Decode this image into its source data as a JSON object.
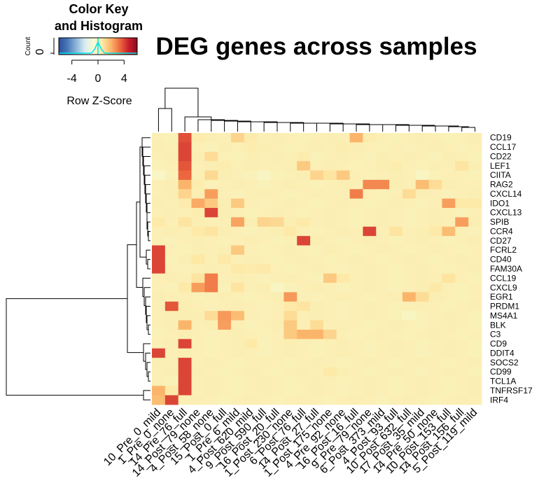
{
  "chart_data": {
    "type": "heatmap",
    "title": "DEG genes across samples",
    "rows": [
      "CD19",
      "CCL17",
      "CD22",
      "LEF1",
      "CIITA",
      "RAG2",
      "CXCL14",
      "IDO1",
      "CXCL13",
      "SPIB",
      "CCR4",
      "CD27",
      "FCRL2",
      "CD40",
      "FAM30A",
      "CCL19",
      "CXCL9",
      "EGR1",
      "PRDM1",
      "MS4A1",
      "BLK",
      "C3",
      "CD9",
      "DDIT4",
      "SOCS2",
      "CD99",
      "TCL1A",
      "TNFRSF17",
      "IRF4"
    ],
    "columns": [
      "10_Pre_0_mild",
      "1_Pre_0_none",
      "14_Pre_76_full",
      "14_Post_79_none",
      "4_Post_58_none",
      "15_Post_0_full",
      "1_Pre_6_mild",
      "4_Post_620_mild",
      "9_Post_590_full",
      "16_Post_20_full",
      "1_Post_230_none",
      "6_Post_76_full",
      "14_Post_27_full",
      "1_Post_175_none",
      "4_Pre_92_none",
      "16_Post_16_full",
      "9_Pre_79_none",
      "6_Post_373_mild",
      "4_Post_93_full",
      "10_Post_632_full",
      "17_Post_35_mild",
      "14_Pre_50_none",
      "10_Post_153_full",
      "14_Post_156_full",
      "5_Post_119_mild"
    ],
    "values": [
      [
        0.2,
        0.1,
        3.8,
        0.4,
        0.3,
        0.2,
        1.2,
        0.5,
        0.2,
        0.3,
        0.2,
        0.1,
        0.2,
        0.3,
        0.2,
        2.0,
        0.4,
        0.2,
        0.1,
        0.2,
        0.3,
        0.2,
        0.1,
        0.2,
        0.3
      ],
      [
        0.3,
        0.2,
        4.0,
        0.2,
        0.1,
        0.3,
        0.2,
        0.4,
        0.3,
        0.2,
        0.1,
        0.2,
        0.3,
        0.2,
        0.4,
        0.3,
        0.2,
        0.1,
        0.2,
        0.1,
        0.2,
        0.3,
        0.2,
        0.1,
        0.2
      ],
      [
        0.2,
        0.3,
        4.0,
        0.3,
        1.0,
        0.2,
        0.1,
        0.3,
        0.2,
        0.3,
        0.2,
        0.4,
        0.1,
        0.2,
        0.3,
        0.2,
        0.1,
        0.3,
        0.2,
        0.3,
        0.2,
        0.1,
        0.3,
        0.2,
        0.1
      ],
      [
        0.1,
        0.2,
        3.7,
        0.2,
        0.3,
        0.4,
        0.2,
        0.3,
        0.2,
        0.2,
        0.3,
        1.5,
        0.2,
        0.3,
        0.2,
        0.1,
        0.2,
        0.3,
        0.4,
        0.2,
        0.1,
        0.3,
        0.2,
        0.8,
        0.3
      ],
      [
        -0.3,
        0.1,
        3.4,
        0.2,
        1.1,
        0.3,
        0.2,
        0.1,
        -0.2,
        0.1,
        0.2,
        0.3,
        1.2,
        0.8,
        1.5,
        0.2,
        0.1,
        0.2,
        0.3,
        0.2,
        -0.2,
        0.1,
        0.2,
        0.2,
        0.1
      ],
      [
        0.2,
        0.3,
        2.0,
        0.4,
        0.1,
        0.2,
        0.3,
        0.2,
        0.1,
        0.2,
        0.3,
        0.2,
        0.1,
        0.2,
        0.3,
        0.2,
        2.8,
        2.8,
        0.3,
        0.2,
        1.8,
        1.0,
        0.3,
        0.2,
        0.2
      ],
      [
        0.2,
        0.3,
        1.2,
        0.3,
        2.4,
        0.2,
        0.1,
        0.2,
        0.3,
        0.2,
        0.1,
        0.2,
        0.3,
        0.2,
        0.2,
        3.0,
        0.2,
        0.1,
        0.2,
        1.0,
        0.3,
        0.2,
        0.1,
        0.2,
        0.3
      ],
      [
        0.3,
        0.2,
        0.5,
        2.2,
        1.5,
        0.3,
        1.5,
        0.2,
        0.1,
        0.2,
        0.3,
        0.2,
        0.1,
        0.2,
        0.3,
        0.2,
        0.1,
        0.2,
        0.3,
        0.2,
        0.1,
        0.2,
        2.4,
        0.6,
        0.6
      ],
      [
        0.2,
        0.3,
        0.2,
        0.4,
        4.0,
        0.3,
        0.2,
        0.1,
        0.2,
        0.3,
        0.2,
        0.1,
        0.2,
        0.3,
        0.2,
        0.1,
        0.2,
        0.3,
        0.2,
        0.1,
        0.2,
        0.3,
        0.2,
        0.1,
        0.2
      ],
      [
        0.6,
        0.2,
        0.8,
        0.3,
        0.2,
        0.2,
        2.3,
        0.3,
        1.2,
        1.1,
        0.3,
        0.6,
        0.2,
        0.3,
        0.2,
        0.1,
        0.2,
        0.3,
        0.2,
        0.1,
        0.2,
        0.3,
        0.2,
        2.4,
        0.3
      ],
      [
        0.2,
        0.3,
        0.2,
        0.6,
        0.8,
        0.3,
        0.2,
        0.1,
        0.2,
        0.3,
        0.6,
        0.2,
        0.1,
        0.2,
        0.3,
        0.2,
        4.0,
        0.2,
        0.8,
        0.2,
        0.3,
        0.6,
        1.8,
        0.2,
        0.1
      ],
      [
        0.2,
        0.1,
        0.2,
        0.3,
        0.2,
        0.1,
        0.2,
        0.3,
        0.2,
        0.1,
        0.2,
        4.0,
        0.3,
        0.2,
        0.1,
        0.2,
        0.3,
        0.2,
        0.1,
        0.2,
        0.3,
        0.2,
        0.1,
        0.2,
        0.3
      ],
      [
        4.0,
        0.2,
        0.1,
        0.3,
        0.2,
        0.3,
        1.5,
        0.2,
        0.1,
        0.2,
        0.3,
        0.2,
        0.1,
        0.3,
        0.2,
        0.1,
        0.2,
        0.3,
        0.2,
        0.1,
        0.2,
        0.3,
        0.2,
        0.1,
        0.2
      ],
      [
        4.0,
        0.1,
        0.3,
        0.7,
        0.2,
        0.6,
        0.2,
        0.3,
        0.2,
        0.1,
        0.2,
        0.3,
        0.2,
        0.1,
        0.2,
        0.3,
        0.2,
        0.1,
        0.2,
        0.3,
        0.2,
        0.1,
        0.2,
        0.3,
        0.2
      ],
      [
        4.0,
        0.2,
        0.1,
        0.2,
        0.3,
        0.2,
        0.6,
        0.5,
        0.6,
        0.2,
        0.1,
        0.2,
        0.3,
        0.2,
        0.1,
        0.2,
        0.3,
        0.2,
        0.1,
        0.2,
        0.3,
        0.2,
        0.1,
        0.2,
        0.3
      ],
      [
        0.2,
        0.3,
        0.2,
        0.8,
        3.0,
        0.2,
        0.3,
        0.2,
        0.1,
        0.2,
        0.3,
        0.2,
        0.1,
        1.5,
        0.6,
        0.2,
        0.3,
        0.2,
        0.1,
        0.2,
        0.3,
        0.2,
        0.8,
        0.2,
        0.1
      ],
      [
        0.2,
        0.1,
        0.6,
        2.4,
        3.0,
        0.1,
        0.8,
        0.2,
        0.3,
        -0.2,
        0.1,
        0.2,
        0.3,
        0.2,
        0.1,
        0.2,
        0.3,
        0.2,
        0.1,
        0.2,
        0.3,
        0.6,
        0.2,
        0.1,
        0.2
      ],
      [
        0.3,
        0.2,
        0.2,
        0.1,
        0.2,
        0.3,
        0.2,
        0.1,
        0.2,
        0.3,
        2.5,
        0.2,
        0.1,
        0.2,
        0.3,
        0.2,
        0.1,
        0.2,
        0.3,
        2.0,
        1.0,
        0.3,
        0.2,
        0.1,
        0.2
      ],
      [
        0.2,
        3.7,
        0.3,
        0.2,
        0.1,
        0.2,
        0.3,
        0.2,
        0.1,
        0.2,
        0.6,
        0.8,
        0.3,
        0.2,
        0.1,
        0.2,
        0.3,
        0.2,
        0.1,
        0.2,
        0.3,
        0.2,
        0.1,
        0.2,
        0.3
      ],
      [
        0.2,
        0.3,
        0.3,
        0.3,
        1.0,
        2.5,
        1.8,
        0.2,
        0.1,
        0.2,
        1.0,
        0.2,
        0.3,
        0.2,
        0.1,
        0.2,
        0.3,
        0.2,
        0.1,
        -0.2,
        0.1,
        0.2,
        0.3,
        0.2,
        0.1
      ],
      [
        0.2,
        0.3,
        2.0,
        0.2,
        0.3,
        2.4,
        0.2,
        0.1,
        0.2,
        0.3,
        1.5,
        0.2,
        1.0,
        0.2,
        0.3,
        0.2,
        0.1,
        0.2,
        0.3,
        0.2,
        0.1,
        0.2,
        0.3,
        0.2,
        0.1
      ],
      [
        0.1,
        0.2,
        0.3,
        0.2,
        0.1,
        0.2,
        0.3,
        0.2,
        0.1,
        0.2,
        1.5,
        2.0,
        2.0,
        1.2,
        0.2,
        0.1,
        0.2,
        0.3,
        0.2,
        0.1,
        0.2,
        0.3,
        0.2,
        0.1,
        0.2
      ],
      [
        0.2,
        0.3,
        4.0,
        0.2,
        0.1,
        0.2,
        0.3,
        0.6,
        0.1,
        0.2,
        0.3,
        0.2,
        0.1,
        0.2,
        0.3,
        0.2,
        0.1,
        0.2,
        0.3,
        0.2,
        0.1,
        0.2,
        0.3,
        0.2,
        0.1
      ],
      [
        4.0,
        0.2,
        0.3,
        0.2,
        0.1,
        0.2,
        0.3,
        0.2,
        0.1,
        0.2,
        0.3,
        0.2,
        0.1,
        0.2,
        0.3,
        0.2,
        0.1,
        0.2,
        0.3,
        0.2,
        0.1,
        0.2,
        0.3,
        0.2,
        0.1
      ],
      [
        0.3,
        0.2,
        4.0,
        0.2,
        0.3,
        0.2,
        0.1,
        0.2,
        0.3,
        0.2,
        0.1,
        0.2,
        0.3,
        0.2,
        0.1,
        0.2,
        0.3,
        0.2,
        0.1,
        0.2,
        0.3,
        0.2,
        0.1,
        0.2,
        0.3
      ],
      [
        0.2,
        0.3,
        4.0,
        0.3,
        0.2,
        0.1,
        0.2,
        0.3,
        0.2,
        0.1,
        0.2,
        0.3,
        0.2,
        0.6,
        0.3,
        0.2,
        0.1,
        0.2,
        0.3,
        0.2,
        0.1,
        0.2,
        0.3,
        0.2,
        0.1
      ],
      [
        0.2,
        0.1,
        4.0,
        0.2,
        0.3,
        0.2,
        0.1,
        0.2,
        0.3,
        0.2,
        0.1,
        0.2,
        0.3,
        0.2,
        0.1,
        0.2,
        0.3,
        0.2,
        0.1,
        0.2,
        0.3,
        0.2,
        0.1,
        0.2,
        0.3
      ],
      [
        2.0,
        0.6,
        4.0,
        0.2,
        0.3,
        0.2,
        0.1,
        0.2,
        0.3,
        0.2,
        0.1,
        0.2,
        0.3,
        0.2,
        0.1,
        0.2,
        0.3,
        0.2,
        0.1,
        0.2,
        0.3,
        0.2,
        0.1,
        0.2,
        0.3
      ],
      [
        1.8,
        4.0,
        0.2,
        0.3,
        0.2,
        0.1,
        0.2,
        0.3,
        0.2,
        0.1,
        0.2,
        0.3,
        0.2,
        0.1,
        0.2,
        0.3,
        0.2,
        0.1,
        0.2,
        0.3,
        0.2,
        0.1,
        0.2,
        0.3,
        0.2
      ]
    ],
    "color_key": {
      "title": "Color Key",
      "subtitle": "and Histogram",
      "xlabel": "Row Z-Score",
      "ylabel": "Count",
      "x_ticks": [
        "-4",
        "0",
        "4"
      ],
      "y_ticks": [
        "0"
      ],
      "range": [
        -6,
        6
      ],
      "colors": [
        "#2c4f9c",
        "#4a78b8",
        "#8cb5d8",
        "#d9ebf2",
        "#f7fbd2",
        "#fde9a6",
        "#fbb56a",
        "#ee6a3f",
        "#c8202c",
        "#8b0a1d"
      ]
    },
    "grid": false,
    "legend": "top-left"
  }
}
